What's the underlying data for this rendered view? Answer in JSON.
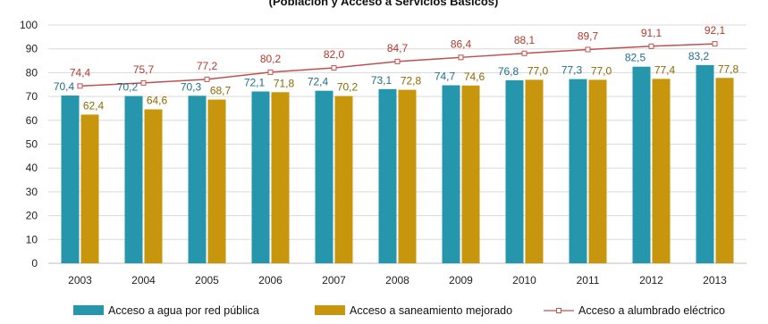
{
  "chart_data": {
    "type": "bar",
    "title": "(Población y Acceso a Servicios Básicos)",
    "categories": [
      "2003",
      "2004",
      "2005",
      "2006",
      "2007",
      "2008",
      "2009",
      "2010",
      "2011",
      "2012",
      "2013"
    ],
    "series": [
      {
        "name": "Acceso a agua por red pública",
        "kind": "bar",
        "color": "#2596ab",
        "values": [
          70.4,
          70.2,
          70.3,
          72.1,
          72.4,
          73.1,
          74.7,
          76.8,
          77.3,
          82.5,
          83.2
        ],
        "labels": [
          "70,4",
          "70,2",
          "70,3",
          "72,1",
          "72,4",
          "73,1",
          "74,7",
          "76,8",
          "77,3",
          "82,5",
          "83,2"
        ],
        "label_color": "#1f6e8c"
      },
      {
        "name": "Acceso a saneamiento mejorado",
        "kind": "bar",
        "color": "#c8960c",
        "values": [
          62.4,
          64.6,
          68.7,
          71.8,
          70.2,
          72.8,
          74.6,
          77.0,
          77.0,
          77.4,
          77.8
        ],
        "labels": [
          "62,4",
          "64,6",
          "68,7",
          "71,8",
          "70,2",
          "72,8",
          "74,6",
          "77,0",
          "77,0",
          "77,4",
          "77,8"
        ],
        "label_color": "#8a6a00"
      },
      {
        "name": "Acceso a alumbrado eléctrico",
        "kind": "line",
        "color": "#c0504d",
        "marker": "square-open",
        "values": [
          74.4,
          75.7,
          77.2,
          80.2,
          82.0,
          84.7,
          86.4,
          88.1,
          89.7,
          91.1,
          92.1
        ],
        "labels": [
          "74,4",
          "75,7",
          "77,2",
          "80,2",
          "82,0",
          "84,7",
          "86,4",
          "88,1",
          "89,7",
          "91,1",
          "92,1"
        ],
        "label_color": "#b03a2e"
      }
    ],
    "y_ticks": [
      "0",
      "10",
      "20",
      "30",
      "40",
      "50",
      "60",
      "70",
      "80",
      "90",
      "100"
    ],
    "ylim": [
      0,
      100
    ],
    "grid": true,
    "grid_color": "#d9d9d9",
    "legend_position": "bottom"
  }
}
